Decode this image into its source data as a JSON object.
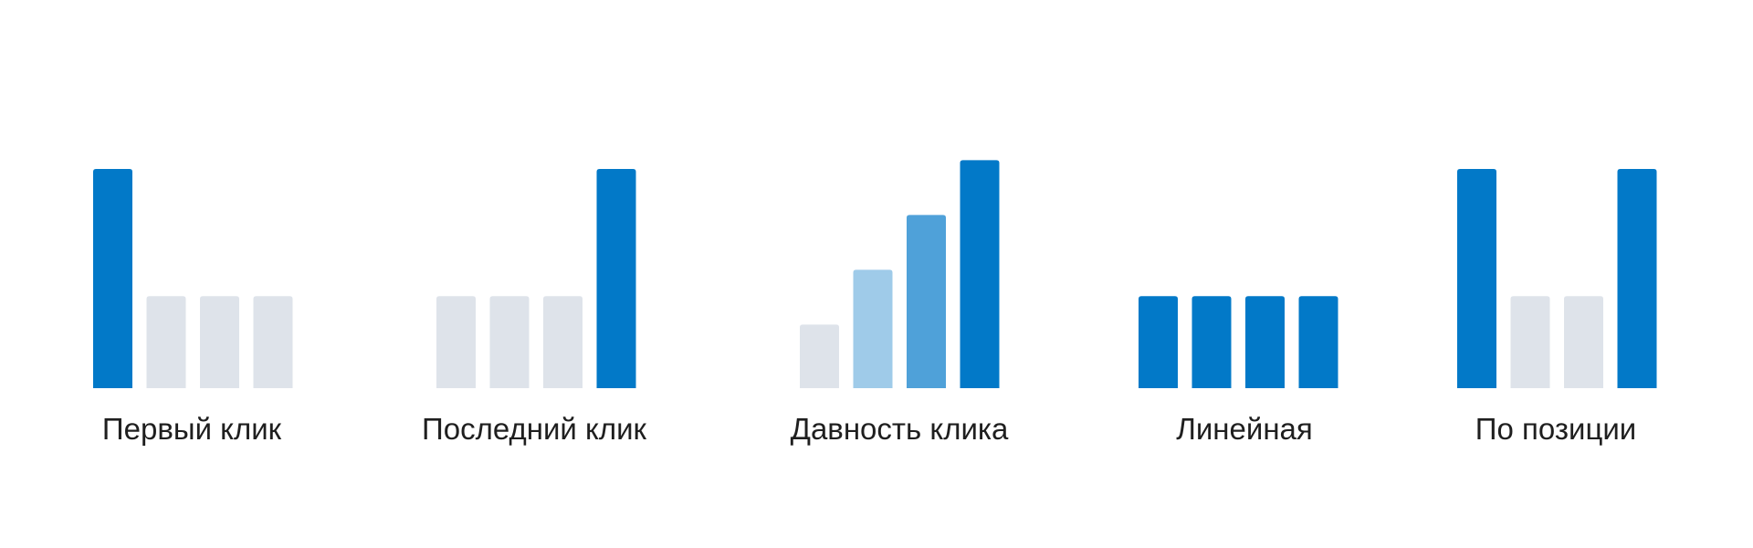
{
  "chart_data": {
    "type": "bar",
    "title": "",
    "xlabel": "",
    "ylabel": "",
    "grid": false,
    "legend": "none",
    "colors": {
      "primary": "#0279c8",
      "medium": "#4fa1d9",
      "light": "#9fcbe9",
      "muted": "#dee3ea"
    },
    "groups": [
      {
        "label": "Первый клик",
        "bars": [
          {
            "value": 100,
            "color": "primary"
          },
          {
            "value": 42,
            "color": "muted"
          },
          {
            "value": 42,
            "color": "muted"
          },
          {
            "value": 42,
            "color": "muted"
          }
        ]
      },
      {
        "label": "Последний клик",
        "bars": [
          {
            "value": 42,
            "color": "muted"
          },
          {
            "value": 42,
            "color": "muted"
          },
          {
            "value": 42,
            "color": "muted"
          },
          {
            "value": 100,
            "color": "primary"
          }
        ]
      },
      {
        "label": "Давность клика",
        "bars": [
          {
            "value": 29,
            "color": "muted"
          },
          {
            "value": 54,
            "color": "light"
          },
          {
            "value": 79,
            "color": "medium"
          },
          {
            "value": 104,
            "color": "primary"
          }
        ]
      },
      {
        "label": "Линейная",
        "bars": [
          {
            "value": 42,
            "color": "primary"
          },
          {
            "value": 42,
            "color": "primary"
          },
          {
            "value": 42,
            "color": "primary"
          },
          {
            "value": 42,
            "color": "primary"
          }
        ]
      },
      {
        "label": "По позиции",
        "bars": [
          {
            "value": 100,
            "color": "primary"
          },
          {
            "value": 42,
            "color": "muted"
          },
          {
            "value": 42,
            "color": "muted"
          },
          {
            "value": 100,
            "color": "primary"
          }
        ]
      }
    ]
  }
}
